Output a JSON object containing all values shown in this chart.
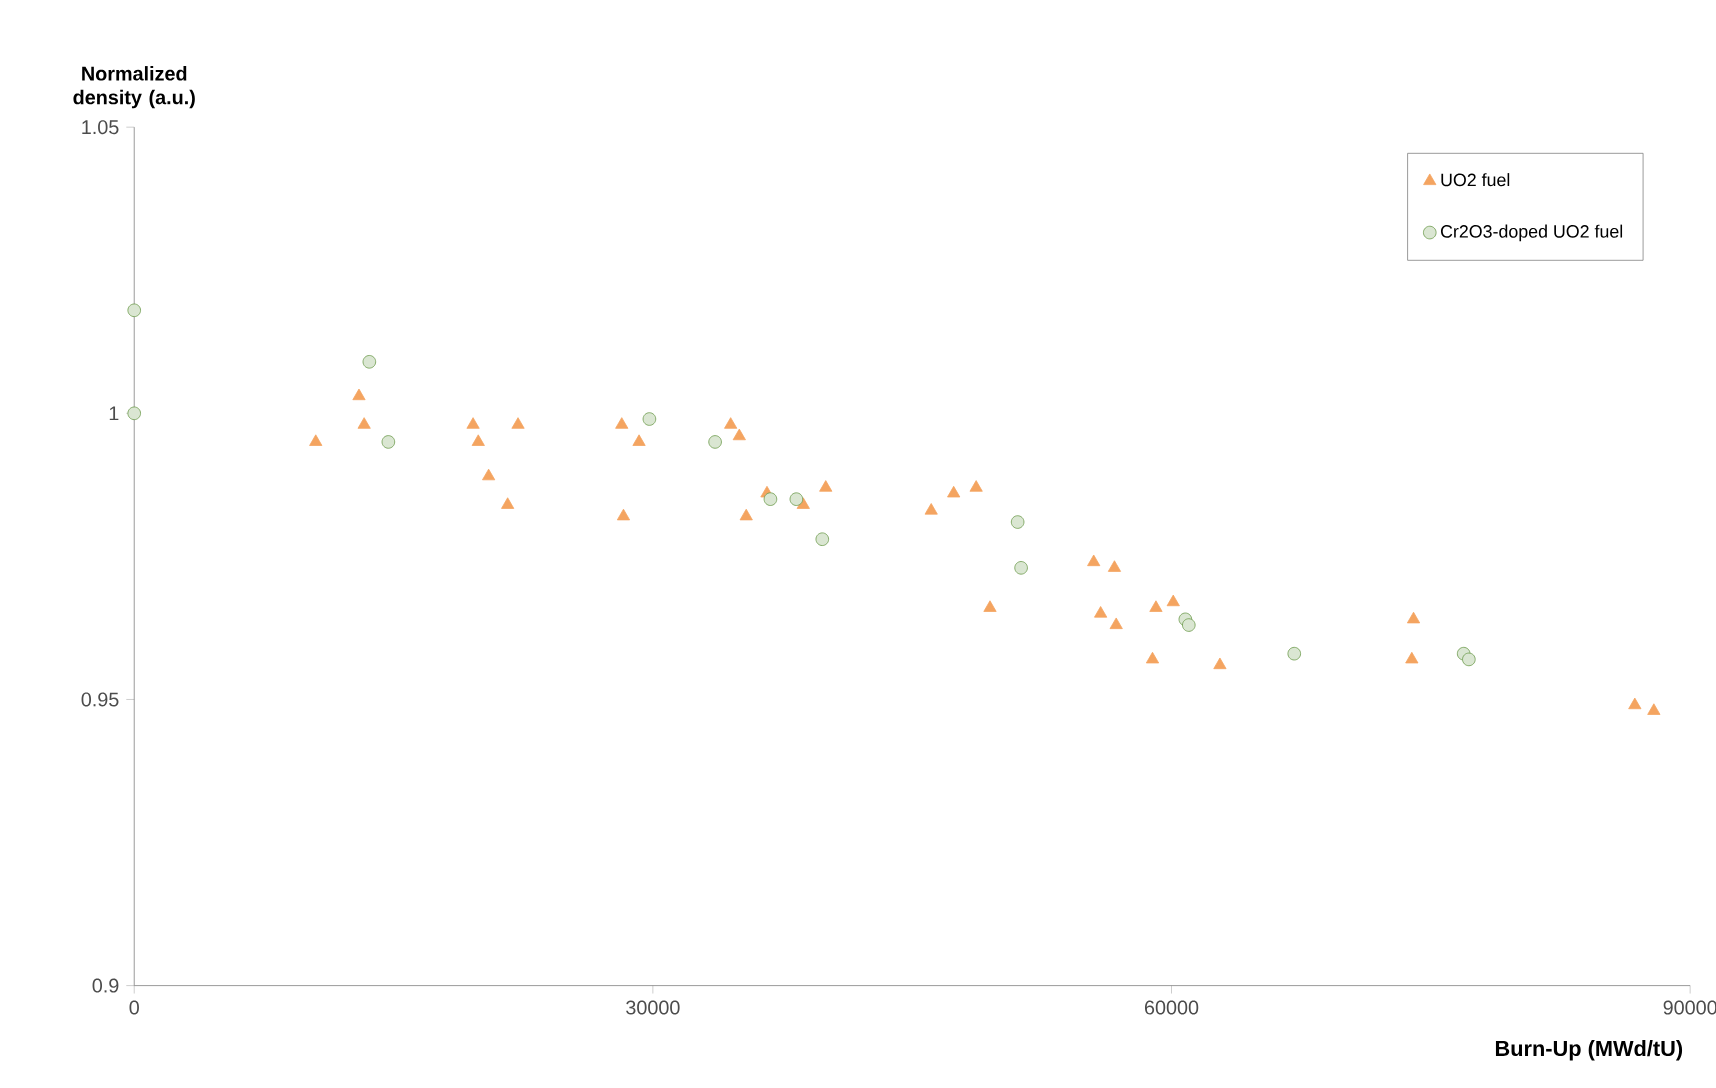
{
  "chart_data": {
    "type": "scatter",
    "xlabel": "Burn-Up (MWd/tU)",
    "ylabel": "Normalized density (a.u.)",
    "xlim": [
      0,
      90000
    ],
    "xticks": [
      0,
      30000,
      60000,
      90000
    ],
    "ylim": [
      0.9,
      1.05
    ],
    "yticks": [
      0.9,
      0.95,
      1,
      1.05
    ],
    "grid": false,
    "legend": "top right",
    "series": [
      {
        "name": "UO2 fuel",
        "color": "#f4a460",
        "marker": "triangle",
        "x": [
          10500,
          13000,
          13300,
          19600,
          19900,
          22200,
          20500,
          21600,
          28300,
          28200,
          29200,
          34500,
          35000,
          35400,
          36600,
          38700,
          40000,
          46100,
          47400,
          48700,
          49500,
          55500,
          56700,
          55900,
          56800,
          59100,
          60100,
          58900,
          62800,
          74000,
          73900,
          86800,
          87900
        ],
        "values": [
          0.995,
          1.003,
          0.998,
          0.998,
          0.995,
          0.998,
          0.989,
          0.984,
          0.982,
          0.998,
          0.995,
          0.998,
          0.996,
          0.982,
          0.986,
          0.984,
          0.987,
          0.983,
          0.986,
          0.987,
          0.966,
          0.974,
          0.973,
          0.965,
          0.963,
          0.966,
          0.967,
          0.957,
          0.956,
          0.964,
          0.957,
          0.949,
          0.948
        ]
      },
      {
        "name": "Cr2O3-doped UO2 fuel",
        "color": "#6a9a4a",
        "marker": "circle",
        "x": [
          0,
          0,
          13600,
          14700,
          29800,
          33600,
          36800,
          38300,
          39800,
          51100,
          51300,
          60800,
          61000,
          67100,
          76900,
          77200
        ],
        "values": [
          1.018,
          1.0,
          1.009,
          0.995,
          0.999,
          0.995,
          0.985,
          0.985,
          0.978,
          0.981,
          0.973,
          0.964,
          0.963,
          0.958,
          0.958,
          0.957
        ]
      }
    ]
  }
}
